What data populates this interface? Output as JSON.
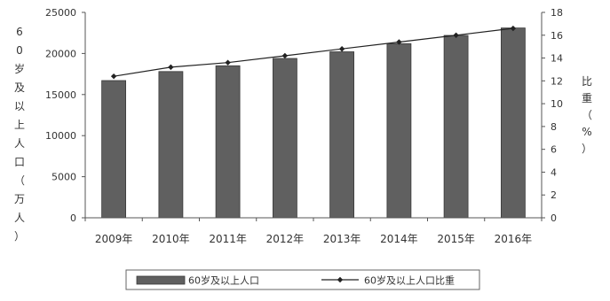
{
  "chart_data": {
    "type": "bar",
    "categories": [
      "2009年",
      "2010年",
      "2011年",
      "2012年",
      "2013年",
      "2014年",
      "2015年",
      "2016年"
    ],
    "series": [
      {
        "name": "60岁及以上人口",
        "type": "bar",
        "axis": "left",
        "values": [
          16700,
          17800,
          18500,
          19400,
          20200,
          21200,
          22200,
          23100
        ]
      },
      {
        "name": "60岁及以上人口比重",
        "type": "line",
        "axis": "right",
        "values": [
          12.4,
          13.2,
          13.6,
          14.2,
          14.8,
          15.4,
          16.0,
          16.6
        ]
      }
    ],
    "ylabel_left": "60岁及以上人口（万人）",
    "ylabel_right": "比重（%）",
    "ylim_left": [
      0,
      25000
    ],
    "yticks_left": [
      0,
      5000,
      10000,
      15000,
      20000,
      25000
    ],
    "ylim_right": [
      0,
      18
    ],
    "yticks_right": [
      0,
      2,
      4,
      6,
      8,
      10,
      12,
      14,
      16,
      18
    ],
    "legend_position": "bottom",
    "grid": false,
    "colors": {
      "bar": "#606060",
      "bar_edge": "#3a3a3a",
      "line": "#222222"
    }
  }
}
